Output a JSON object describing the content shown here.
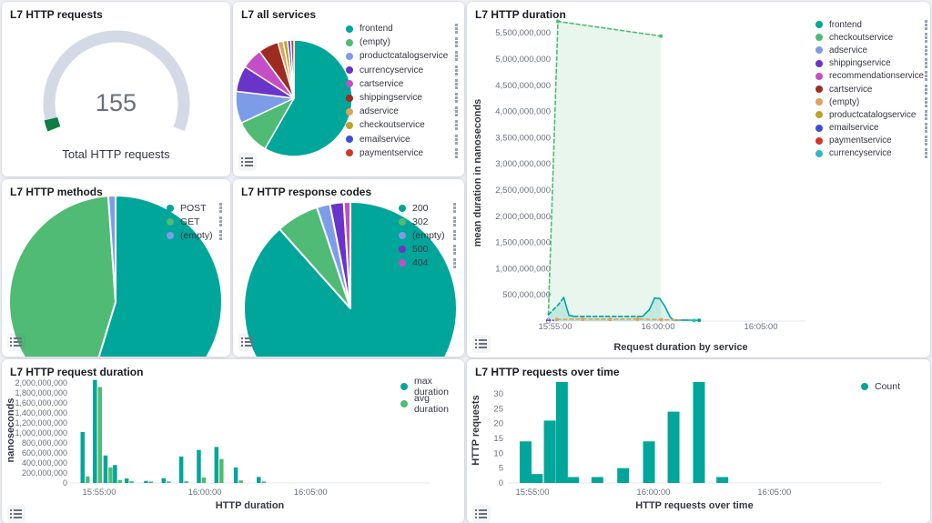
{
  "palette": {
    "teal": "#00a69a",
    "green": "#4fbb74",
    "periwinkle": "#7d9ce8",
    "purple": "#6a33c9",
    "magenta": "#c44fc4",
    "dark_red": "#9e2b20",
    "orange": "#e2a05c",
    "olive": "#bda32e",
    "blue": "#3b4fd8",
    "red": "#d0372b",
    "cyan": "#32b7c7",
    "gauge_green": "#0d7e45",
    "gauge_track": "#d3dae6",
    "axis_text": "#69707d",
    "title_text": "#1a1c21",
    "legend_text": "#343741",
    "axis_line": "#e4e7ee"
  },
  "icons": {
    "legend_toggle": "list-icon",
    "legend_item_menu": "boxes-vertical-icon"
  },
  "panels": {
    "requests_gauge": {
      "title": "L7 HTTP requests",
      "chart_data": {
        "type": "gauge",
        "value": 155,
        "display_value": "155",
        "label": "Total HTTP requests",
        "fraction": 0.04
      }
    },
    "all_services": {
      "title": "L7 all services",
      "chart_data": {
        "type": "pie",
        "slices": [
          {
            "label": "frontend",
            "color": "teal",
            "pct": 58.3
          },
          {
            "label": "(empty)",
            "color": "green",
            "pct": 9.7
          },
          {
            "label": "productcatalogservice",
            "color": "periwinkle",
            "pct": 8.9
          },
          {
            "label": "currencyservice",
            "color": "purple",
            "pct": 7.2
          },
          {
            "label": "cartservice",
            "color": "magenta",
            "pct": 5.8
          },
          {
            "label": "shippingservice",
            "color": "dark_red",
            "pct": 5.6
          },
          {
            "label": "adservice",
            "color": "orange",
            "pct": 1.5
          },
          {
            "label": "checkoutservice",
            "color": "olive",
            "pct": 1.2
          },
          {
            "label": "emailservice",
            "color": "blue",
            "pct": 0.9
          },
          {
            "label": "paymentservice",
            "color": "red",
            "pct": 0.9
          }
        ]
      }
    },
    "http_duration": {
      "title": "L7 HTTP duration",
      "chart_data": {
        "type": "area",
        "xlabel": "Request duration by service",
        "ylabel": "mean duration in nanoseconds",
        "ylim": [
          0,
          5750000000
        ],
        "y_ticks": [
          0,
          500000000,
          1000000000,
          1500000000,
          2000000000,
          2500000000,
          3000000000,
          3500000000,
          4000000000,
          4500000000,
          5000000000,
          5500000000
        ],
        "x_ticks": [
          "15:55:00",
          "16:00:00",
          "16:05:00"
        ],
        "legend": [
          {
            "label": "frontend",
            "color": "teal"
          },
          {
            "label": "checkoutservice",
            "color": "green"
          },
          {
            "label": "adservice",
            "color": "periwinkle"
          },
          {
            "label": "shippingservice",
            "color": "purple"
          },
          {
            "label": "recommendationservice",
            "color": "magenta"
          },
          {
            "label": "cartservice",
            "color": "dark_red"
          },
          {
            "label": "(empty)",
            "color": "orange"
          },
          {
            "label": "productcatalogservice",
            "color": "olive"
          },
          {
            "label": "emailservice",
            "color": "blue"
          },
          {
            "label": "paymentservice",
            "color": "red"
          },
          {
            "label": "currencyservice",
            "color": "cyan"
          }
        ],
        "series": [
          {
            "name": "checkoutservice",
            "color": "green",
            "style": "area",
            "fill_opacity": 0.13,
            "points": [
              [
                -20,
                0
              ],
              [
                -20,
                120000000
              ],
              [
                8,
                5720000000
              ],
              [
                308,
                5440000000
              ],
              [
                308,
                0
              ]
            ]
          },
          {
            "name": "checkoutservice",
            "color": "green",
            "style": "dashed",
            "points": [
              [
                -20,
                120000000
              ],
              [
                8,
                5720000000
              ],
              [
                308,
                5440000000
              ]
            ],
            "dots": [
              [
                8,
                5720000000
              ],
              [
                308,
                5440000000
              ]
            ]
          },
          {
            "name": "frontend",
            "color": "teal",
            "style": "area",
            "fill_opacity": 0.16,
            "points": [
              [
                -20,
                0
              ],
              [
                -20,
                120000000
              ],
              [
                25,
                450000000
              ],
              [
                40,
                110000000
              ],
              [
                55,
                90000000
              ],
              [
                255,
                90000000
              ],
              [
                275,
                220000000
              ],
              [
                290,
                440000000
              ],
              [
                305,
                430000000
              ],
              [
                320,
                280000000
              ],
              [
                335,
                80000000
              ],
              [
                345,
                20000000
              ],
              [
                420,
                15000000
              ],
              [
                420,
                0
              ]
            ]
          },
          {
            "name": "frontend",
            "color": "teal",
            "style": "dashed",
            "points": [
              [
                -20,
                120000000
              ],
              [
                10,
                320000000
              ],
              [
                25,
                450000000
              ]
            ]
          },
          {
            "name": "frontend",
            "color": "teal",
            "style": "dashed",
            "points": [
              [
                55,
                90000000
              ],
              [
                255,
                90000000
              ]
            ]
          },
          {
            "name": "frontend",
            "color": "teal",
            "style": "solid",
            "points": [
              [
                25,
                450000000
              ],
              [
                40,
                110000000
              ],
              [
                55,
                90000000
              ]
            ]
          },
          {
            "name": "frontend",
            "color": "teal",
            "style": "solid",
            "points": [
              [
                255,
                90000000
              ],
              [
                275,
                220000000
              ],
              [
                290,
                440000000
              ],
              [
                305,
                430000000
              ],
              [
                320,
                280000000
              ],
              [
                335,
                80000000
              ],
              [
                345,
                20000000
              ],
              [
                420,
                15000000
              ]
            ],
            "dots": [
              [
                420,
                15000000
              ]
            ]
          },
          {
            "name": "(empty)",
            "color": "orange",
            "style": "dashed",
            "points": [
              [
                5,
                30000000
              ],
              [
                80,
                40000000
              ],
              [
                160,
                30000000
              ],
              [
                240,
                40000000
              ],
              [
                310,
                25000000
              ],
              [
                365,
                25000000
              ]
            ],
            "dots": [
              [
                5,
                30000000
              ],
              [
                80,
                40000000
              ],
              [
                160,
                30000000
              ],
              [
                240,
                40000000
              ],
              [
                310,
                25000000
              ]
            ]
          },
          {
            "name": "shippingservice",
            "color": "purple",
            "style": "dashed",
            "points": [
              [
                -25,
                15000000
              ],
              [
                -5,
                15000000
              ]
            ]
          },
          {
            "name": "currencyservice",
            "color": "cyan",
            "style": "solid",
            "points": [
              [
                390,
                12000000
              ],
              [
                405,
                12000000
              ]
            ],
            "dots": [
              [
                405,
                12000000
              ]
            ]
          }
        ]
      }
    },
    "http_methods": {
      "title": "L7 HTTP methods",
      "chart_data": {
        "type": "pie",
        "slices": [
          {
            "label": "POST",
            "color": "teal",
            "pct": 54.7
          },
          {
            "label": "GET",
            "color": "green",
            "pct": 44.2
          },
          {
            "label": "(empty)",
            "color": "periwinkle",
            "pct": 1.1
          }
        ]
      }
    },
    "response_codes": {
      "title": "L7 HTTP response codes",
      "chart_data": {
        "type": "pie",
        "slices": [
          {
            "label": "200",
            "color": "teal",
            "pct": 88.4
          },
          {
            "label": "302",
            "color": "green",
            "pct": 6.5
          },
          {
            "label": "(empty)",
            "color": "periwinkle",
            "pct": 2.0
          },
          {
            "label": "500",
            "color": "purple",
            "pct": 2.1
          },
          {
            "label": "404",
            "color": "magenta",
            "pct": 1.0
          }
        ]
      }
    },
    "request_duration": {
      "title": "L7 HTTP request duration",
      "chart_data": {
        "type": "bar",
        "xlabel": "HTTP duration",
        "ylabel": "nanoseconds",
        "ylim": [
          0,
          2000000000
        ],
        "y_ticks": [
          0,
          200000000,
          400000000,
          600000000,
          800000000,
          1000000000,
          1200000000,
          1400000000,
          1600000000,
          1800000000,
          2000000000
        ],
        "x_ticks": [
          "15:55:00",
          "16:00:00",
          "16:05:00"
        ],
        "x_offsets_sec": [
          -40,
          -5,
          25,
          52,
          85,
          140,
          190,
          240,
          290,
          340,
          395,
          460
        ],
        "series": [
          {
            "name": "max duration",
            "color": "teal",
            "values": [
              1020000000,
              2060000000,
              550000000,
              360000000,
              90000000,
              40000000,
              95000000,
              530000000,
              660000000,
              720000000,
              310000000,
              120000000
            ]
          },
          {
            "name": "avg duration",
            "color": "green",
            "values": [
              130000000,
              1920000000,
              310000000,
              60000000,
              35000000,
              30000000,
              30000000,
              35000000,
              110000000,
              480000000,
              50000000,
              30000000
            ]
          }
        ]
      }
    },
    "requests_over_time": {
      "title": "L7 HTTP requests over time",
      "chart_data": {
        "type": "bar",
        "xlabel": "HTTP requests over time",
        "ylabel": "HTTP requests",
        "ylim": [
          0,
          34
        ],
        "y_ticks": [
          0,
          5,
          10,
          15,
          20,
          25,
          30
        ],
        "x_ticks": [
          "15:55:00",
          "16:00:00",
          "16:05:00"
        ],
        "x_offsets_sec": [
          -17,
          11,
          43,
          73,
          101,
          161,
          225,
          289,
          350,
          413,
          471
        ],
        "series": [
          {
            "name": "Count",
            "color": "teal",
            "values": [
              14,
              3,
              21,
              34,
              2,
              2,
              5,
              14,
              24,
              34,
              2
            ]
          }
        ]
      }
    }
  }
}
